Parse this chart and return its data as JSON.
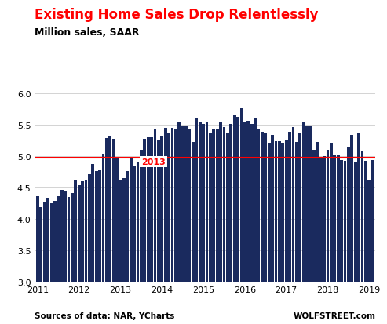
{
  "title": "Existing Home Sales Drop Relentlessly",
  "subtitle": "Million sales, SAAR",
  "source_left": "Sources of data: NAR, YCharts",
  "source_right": "WOLFSTREET.com",
  "title_color": "#ff0000",
  "subtitle_color": "#000000",
  "bar_color": "#1a2a5e",
  "reference_line_value": 4.98,
  "reference_line_color": "#ff0000",
  "reference_label": "2013",
  "reference_label_color": "#ff0000",
  "ylim": [
    3.0,
    6.0
  ],
  "yticks": [
    3.0,
    3.5,
    4.0,
    4.5,
    5.0,
    5.5,
    6.0
  ],
  "xlabel_years": [
    2011,
    2012,
    2013,
    2014,
    2015,
    2016,
    2017,
    2018,
    2019
  ],
  "values": [
    4.36,
    4.19,
    4.27,
    4.34,
    4.25,
    4.29,
    4.37,
    4.46,
    4.44,
    4.35,
    4.42,
    4.63,
    4.54,
    4.6,
    4.63,
    4.72,
    4.88,
    4.77,
    4.78,
    5.04,
    5.29,
    5.32,
    5.28,
    4.99,
    4.62,
    4.65,
    4.77,
    4.97,
    4.85,
    4.9,
    5.1,
    5.27,
    5.31,
    5.31,
    5.44,
    5.26,
    5.33,
    5.45,
    5.36,
    5.45,
    5.43,
    5.55,
    5.47,
    5.48,
    5.43,
    5.22,
    5.6,
    5.55,
    5.51,
    5.55,
    5.36,
    5.44,
    5.44,
    5.55,
    5.46,
    5.38,
    5.51,
    5.65,
    5.62,
    5.76,
    5.54,
    5.56,
    5.51,
    5.61,
    5.42,
    5.39,
    5.38,
    5.21,
    5.34,
    5.24,
    5.24,
    5.21,
    5.25,
    5.39,
    5.46,
    5.22,
    5.38,
    5.54,
    5.49,
    5.49,
    5.1,
    5.22,
    4.99,
    5.0,
    5.1,
    5.21,
    5.02,
    5.01,
    4.94,
    4.93,
    5.15,
    5.34,
    4.9,
    5.36,
    5.07,
    4.93,
    4.62,
    4.94
  ],
  "background_color": "#ffffff",
  "grid_color": "#cccccc",
  "title_fontsize": 12,
  "subtitle_fontsize": 9,
  "source_fontsize": 7.5,
  "tick_fontsize": 8
}
